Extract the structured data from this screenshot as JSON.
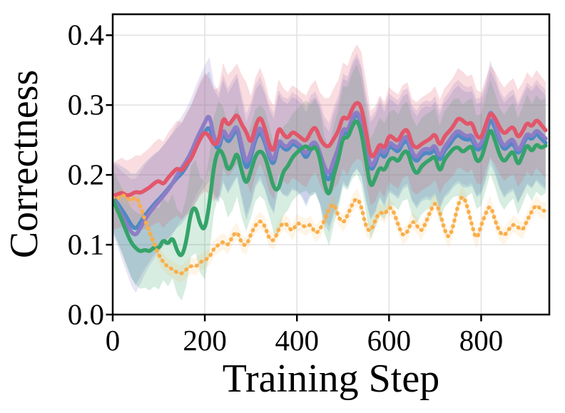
{
  "chart_data": {
    "type": "line",
    "title": "",
    "xlabel": "Training Step",
    "ylabel": "Correctness",
    "xlim": [
      0,
      948
    ],
    "ylim": [
      0,
      0.43
    ],
    "grid": true,
    "legend": "none",
    "grid_color": "#e2e2e2",
    "spine_color": "#000000",
    "background_color": "#ffffff",
    "xticks": [
      0,
      200,
      400,
      600,
      800
    ],
    "xtick_labels": [
      "0",
      "200",
      "400",
      "600",
      "800"
    ],
    "yticks": [
      0.0,
      0.1,
      0.2,
      0.3,
      0.4
    ],
    "ytick_labels": [
      "0.0",
      "0.1",
      "0.2",
      "0.3",
      "0.4"
    ],
    "x": [
      0,
      10,
      20,
      30,
      40,
      50,
      60,
      70,
      80,
      90,
      100,
      110,
      120,
      130,
      140,
      150,
      160,
      170,
      180,
      190,
      200,
      210,
      220,
      230,
      240,
      250,
      260,
      270,
      280,
      290,
      300,
      310,
      320,
      330,
      340,
      350,
      360,
      370,
      380,
      390,
      400,
      410,
      420,
      430,
      440,
      450,
      460,
      470,
      480,
      490,
      500,
      510,
      520,
      530,
      540,
      550,
      560,
      570,
      580,
      590,
      600,
      610,
      620,
      630,
      640,
      650,
      660,
      670,
      680,
      690,
      700,
      710,
      720,
      730,
      740,
      750,
      760,
      770,
      780,
      790,
      800,
      810,
      820,
      830,
      840,
      850,
      860,
      870,
      880,
      890,
      900,
      910,
      920,
      930,
      940
    ],
    "band_x": [
      0,
      50,
      100,
      150,
      200,
      250,
      300,
      350,
      400,
      450,
      500,
      530,
      560,
      600,
      650,
      700,
      750,
      800,
      850,
      900,
      940
    ],
    "series": [
      {
        "id": "blue",
        "color": "#4d89c4",
        "line_style": "solid",
        "band_alpha": 0.2,
        "values": [
          0.168,
          0.16,
          0.15,
          0.14,
          0.128,
          0.122,
          0.132,
          0.142,
          0.15,
          0.158,
          0.165,
          0.172,
          0.18,
          0.188,
          0.196,
          0.202,
          0.212,
          0.225,
          0.238,
          0.252,
          0.262,
          0.27,
          0.245,
          0.235,
          0.262,
          0.245,
          0.256,
          0.268,
          0.235,
          0.205,
          0.225,
          0.252,
          0.262,
          0.248,
          0.225,
          0.212,
          0.248,
          0.238,
          0.235,
          0.245,
          0.242,
          0.235,
          0.222,
          0.238,
          0.242,
          0.228,
          0.2,
          0.19,
          0.215,
          0.232,
          0.262,
          0.258,
          0.278,
          0.288,
          0.275,
          0.235,
          0.205,
          0.215,
          0.235,
          0.222,
          0.242,
          0.238,
          0.232,
          0.246,
          0.25,
          0.228,
          0.218,
          0.228,
          0.232,
          0.23,
          0.238,
          0.218,
          0.235,
          0.242,
          0.252,
          0.258,
          0.252,
          0.25,
          0.252,
          0.235,
          0.238,
          0.258,
          0.282,
          0.268,
          0.248,
          0.235,
          0.242,
          0.246,
          0.228,
          0.242,
          0.256,
          0.25,
          0.26,
          0.252,
          0.246
        ],
        "band_halfwidth": [
          0.05,
          0.08,
          0.07,
          0.072,
          0.08,
          0.072,
          0.07,
          0.068,
          0.066,
          0.07,
          0.075,
          0.08,
          0.07,
          0.067,
          0.066,
          0.067,
          0.07,
          0.066,
          0.068,
          0.07,
          0.068
        ]
      },
      {
        "id": "purple",
        "color": "#8d7dc6",
        "line_style": "solid",
        "band_alpha": 0.2,
        "values": [
          0.166,
          0.155,
          0.142,
          0.13,
          0.118,
          0.113,
          0.124,
          0.136,
          0.146,
          0.154,
          0.162,
          0.17,
          0.178,
          0.188,
          0.2,
          0.21,
          0.22,
          0.232,
          0.248,
          0.262,
          0.275,
          0.288,
          0.252,
          0.24,
          0.268,
          0.25,
          0.262,
          0.272,
          0.242,
          0.215,
          0.232,
          0.258,
          0.27,
          0.252,
          0.23,
          0.218,
          0.252,
          0.242,
          0.24,
          0.25,
          0.246,
          0.24,
          0.228,
          0.244,
          0.248,
          0.232,
          0.21,
          0.2,
          0.222,
          0.238,
          0.268,
          0.262,
          0.282,
          0.292,
          0.278,
          0.24,
          0.21,
          0.22,
          0.24,
          0.228,
          0.248,
          0.242,
          0.238,
          0.252,
          0.256,
          0.232,
          0.224,
          0.234,
          0.238,
          0.236,
          0.244,
          0.224,
          0.24,
          0.248,
          0.258,
          0.264,
          0.258,
          0.255,
          0.258,
          0.24,
          0.244,
          0.264,
          0.295,
          0.275,
          0.252,
          0.24,
          0.248,
          0.252,
          0.232,
          0.246,
          0.26,
          0.254,
          0.265,
          0.258,
          0.252
        ],
        "band_halfwidth": [
          0.05,
          0.082,
          0.072,
          0.074,
          0.082,
          0.074,
          0.072,
          0.07,
          0.068,
          0.072,
          0.077,
          0.082,
          0.072,
          0.069,
          0.068,
          0.069,
          0.072,
          0.068,
          0.07,
          0.072,
          0.07
        ]
      },
      {
        "id": "green",
        "color": "#35a36a",
        "line_style": "solid",
        "band_alpha": 0.2,
        "values": [
          0.165,
          0.15,
          0.135,
          0.118,
          0.103,
          0.095,
          0.09,
          0.093,
          0.09,
          0.097,
          0.094,
          0.108,
          0.1,
          0.112,
          0.09,
          0.082,
          0.105,
          0.148,
          0.155,
          0.128,
          0.12,
          0.158,
          0.215,
          0.238,
          0.23,
          0.205,
          0.215,
          0.235,
          0.205,
          0.185,
          0.205,
          0.228,
          0.235,
          0.228,
          0.205,
          0.18,
          0.178,
          0.205,
          0.212,
          0.225,
          0.232,
          0.238,
          0.242,
          0.235,
          0.242,
          0.225,
          0.185,
          0.168,
          0.2,
          0.222,
          0.255,
          0.252,
          0.27,
          0.28,
          0.262,
          0.22,
          0.18,
          0.195,
          0.212,
          0.205,
          0.222,
          0.225,
          0.218,
          0.232,
          0.235,
          0.212,
          0.2,
          0.212,
          0.218,
          0.222,
          0.228,
          0.202,
          0.222,
          0.23,
          0.238,
          0.24,
          0.232,
          0.238,
          0.242,
          0.218,
          0.222,
          0.245,
          0.268,
          0.25,
          0.228,
          0.218,
          0.228,
          0.235,
          0.212,
          0.228,
          0.245,
          0.232,
          0.245,
          0.238,
          0.242
        ],
        "band_halfwidth": [
          0.042,
          0.052,
          0.058,
          0.062,
          0.07,
          0.066,
          0.066,
          0.064,
          0.062,
          0.068,
          0.072,
          0.078,
          0.072,
          0.068,
          0.07,
          0.068,
          0.07,
          0.066,
          0.068,
          0.07,
          0.068
        ]
      },
      {
        "id": "red",
        "color": "#e2566b",
        "line_style": "solid",
        "band_alpha": 0.2,
        "values": [
          0.17,
          0.172,
          0.175,
          0.17,
          0.172,
          0.176,
          0.174,
          0.178,
          0.182,
          0.188,
          0.192,
          0.186,
          0.196,
          0.203,
          0.21,
          0.205,
          0.216,
          0.222,
          0.238,
          0.252,
          0.262,
          0.255,
          0.242,
          0.248,
          0.285,
          0.27,
          0.278,
          0.288,
          0.272,
          0.262,
          0.243,
          0.27,
          0.285,
          0.268,
          0.242,
          0.232,
          0.27,
          0.258,
          0.252,
          0.262,
          0.258,
          0.252,
          0.248,
          0.262,
          0.27,
          0.252,
          0.242,
          0.24,
          0.252,
          0.262,
          0.285,
          0.278,
          0.295,
          0.305,
          0.298,
          0.262,
          0.224,
          0.23,
          0.246,
          0.236,
          0.258,
          0.252,
          0.248,
          0.262,
          0.266,
          0.243,
          0.238,
          0.244,
          0.248,
          0.252,
          0.26,
          0.24,
          0.255,
          0.262,
          0.27,
          0.282,
          0.278,
          0.272,
          0.276,
          0.255,
          0.252,
          0.272,
          0.29,
          0.282,
          0.268,
          0.258,
          0.265,
          0.27,
          0.252,
          0.262,
          0.276,
          0.268,
          0.28,
          0.272,
          0.264
        ],
        "band_halfwidth": [
          0.048,
          0.052,
          0.06,
          0.07,
          0.085,
          0.073,
          0.07,
          0.067,
          0.066,
          0.066,
          0.076,
          0.082,
          0.068,
          0.068,
          0.066,
          0.067,
          0.071,
          0.066,
          0.067,
          0.071,
          0.069
        ]
      },
      {
        "id": "orange",
        "color": "#f9ae49",
        "line_style": "dotted",
        "band_alpha": 0.13,
        "values": [
          0.168,
          0.165,
          0.172,
          0.168,
          0.162,
          0.17,
          0.155,
          0.135,
          0.118,
          0.102,
          0.085,
          0.075,
          0.068,
          0.065,
          0.06,
          0.058,
          0.065,
          0.07,
          0.068,
          0.075,
          0.078,
          0.082,
          0.095,
          0.1,
          0.105,
          0.098,
          0.112,
          0.12,
          0.102,
          0.098,
          0.115,
          0.128,
          0.135,
          0.128,
          0.108,
          0.105,
          0.122,
          0.132,
          0.128,
          0.118,
          0.132,
          0.128,
          0.125,
          0.13,
          0.115,
          0.122,
          0.135,
          0.152,
          0.16,
          0.14,
          0.13,
          0.142,
          0.158,
          0.168,
          0.155,
          0.125,
          0.118,
          0.135,
          0.148,
          0.142,
          0.155,
          0.148,
          0.128,
          0.112,
          0.118,
          0.135,
          0.128,
          0.118,
          0.132,
          0.148,
          0.162,
          0.148,
          0.122,
          0.108,
          0.128,
          0.158,
          0.172,
          0.155,
          0.128,
          0.105,
          0.128,
          0.145,
          0.158,
          0.135,
          0.118,
          0.112,
          0.122,
          0.13,
          0.125,
          0.12,
          0.135,
          0.148,
          0.158,
          0.15,
          0.148
        ],
        "band_halfwidth": [
          0.01,
          0.01,
          0.012,
          0.012,
          0.012,
          0.012,
          0.012,
          0.012,
          0.012,
          0.012,
          0.012,
          0.013,
          0.012,
          0.012,
          0.012,
          0.012,
          0.013,
          0.012,
          0.012,
          0.012,
          0.012
        ]
      }
    ]
  }
}
